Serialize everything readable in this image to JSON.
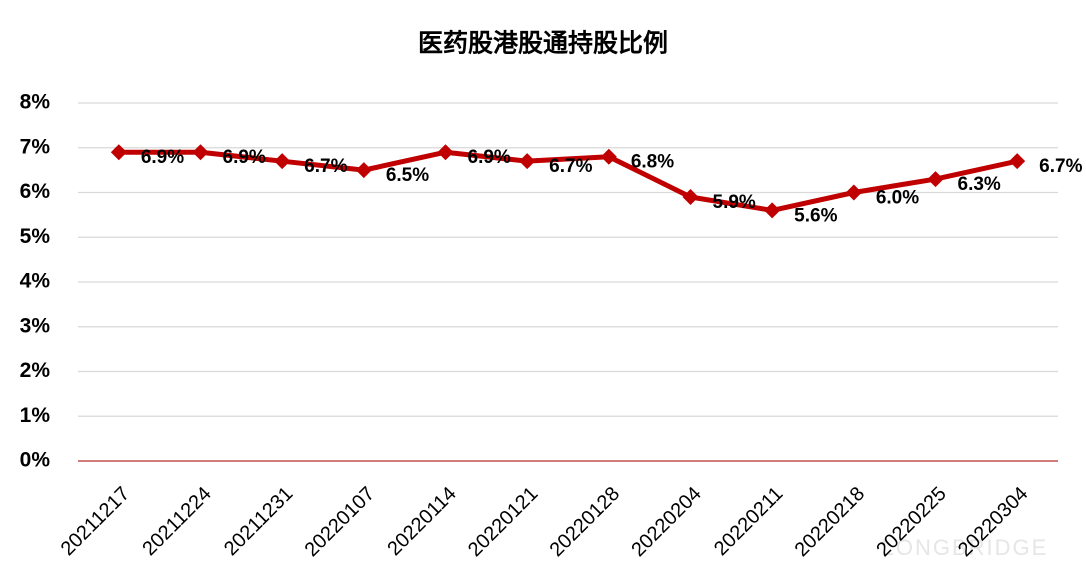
{
  "chart_data": {
    "type": "line",
    "title": "医药股港股通持股比例",
    "categories": [
      "20211217",
      "20211224",
      "20211231",
      "20220107",
      "20220114",
      "20220121",
      "20220128",
      "20220204",
      "20220211",
      "20220218",
      "20220225",
      "20220304"
    ],
    "values": [
      6.9,
      6.9,
      6.7,
      6.5,
      6.9,
      6.7,
      6.8,
      5.9,
      5.6,
      6.0,
      6.3,
      6.7
    ],
    "value_labels": [
      "6.9%",
      "6.9%",
      "6.7%",
      "6.5%",
      "6.9%",
      "6.7%",
      "6.8%",
      "5.9%",
      "5.6%",
      "6.0%",
      "6.3%",
      "6.7%"
    ],
    "color": "#c00000",
    "ylim": [
      0,
      8
    ],
    "yticks": [
      {
        "value": 0,
        "label": "0%"
      },
      {
        "value": 1,
        "label": "1%"
      },
      {
        "value": 2,
        "label": "2%"
      },
      {
        "value": 3,
        "label": "3%"
      },
      {
        "value": 4,
        "label": "4%"
      },
      {
        "value": 5,
        "label": "5%"
      },
      {
        "value": 6,
        "label": "6%"
      },
      {
        "value": 7,
        "label": "7%"
      },
      {
        "value": 8,
        "label": "8%"
      }
    ],
    "grid": true,
    "watermark": "LONGBRIDGE"
  }
}
